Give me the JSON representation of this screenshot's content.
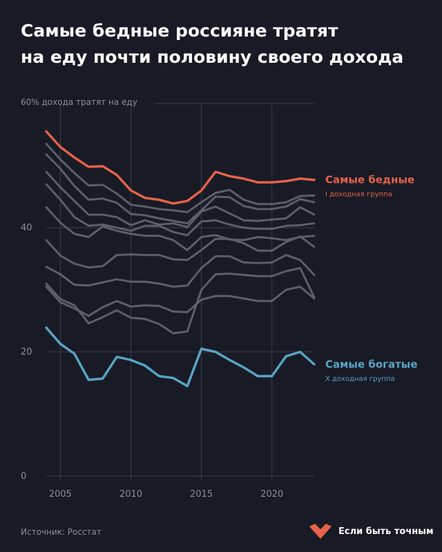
{
  "title": {
    "line1": "Самые бедные россияне тратят",
    "line2": "на еду почти половину своего дохода"
  },
  "footer": {
    "source": "Источник: Росстат",
    "brand": "Если быть точным",
    "brand_color": "#e5614a"
  },
  "chart_data": {
    "type": "line",
    "ylabel": "60% дохода тратят на еду",
    "ylim": [
      0,
      60
    ],
    "xlim": [
      2004,
      2023
    ],
    "yticks": [
      0,
      20,
      40
    ],
    "xticks": [
      2005,
      2010,
      2015,
      2020
    ],
    "grid": true,
    "x": [
      2004,
      2005,
      2006,
      2007,
      2008,
      2009,
      2010,
      2011,
      2012,
      2013,
      2014,
      2015,
      2016,
      2017,
      2018,
      2019,
      2020,
      2021,
      2022,
      2023
    ],
    "series": [
      {
        "id": "poorest",
        "name": "Самые бедные",
        "sublabel": "I доходная группа",
        "color": "#e5614a",
        "highlight": true,
        "values": [
          55.5,
          53.0,
          51.3,
          49.8,
          49.9,
          48.5,
          46.0,
          44.8,
          44.5,
          43.9,
          44.3,
          46.0,
          49.0,
          48.3,
          47.9,
          47.3,
          47.3,
          47.5,
          47.9,
          47.7
        ]
      },
      {
        "id": "g2",
        "name": "",
        "color": "#5a5f6b",
        "highlight": false,
        "values": [
          53.5,
          51.0,
          48.8,
          46.8,
          46.9,
          45.5,
          43.7,
          43.4,
          43.0,
          42.8,
          42.5,
          44.1,
          45.6,
          46.1,
          44.5,
          43.8,
          43.8,
          44.1,
          45.1,
          45.2
        ]
      },
      {
        "id": "g3",
        "name": "",
        "color": "#5a5f6b",
        "highlight": false,
        "values": [
          51.8,
          49.5,
          46.7,
          44.5,
          44.7,
          44.0,
          42.2,
          42.0,
          41.5,
          41.1,
          40.7,
          42.8,
          45.0,
          44.9,
          43.5,
          43.0,
          43.0,
          43.4,
          44.6,
          44.1
        ]
      },
      {
        "id": "g4",
        "name": "",
        "color": "#5a5f6b",
        "highlight": false,
        "values": [
          49.0,
          46.5,
          44.3,
          42.1,
          42.1,
          41.7,
          40.4,
          41.2,
          40.5,
          40.7,
          40.1,
          42.6,
          43.4,
          42.3,
          41.2,
          41.1,
          41.3,
          41.5,
          43.3,
          42.1
        ]
      },
      {
        "id": "g5",
        "name": "",
        "color": "#5a5f6b",
        "highlight": false,
        "values": [
          47.0,
          44.5,
          41.7,
          40.3,
          40.5,
          40.0,
          39.5,
          40.3,
          40.3,
          39.3,
          38.8,
          41.0,
          41.2,
          40.5,
          40.0,
          39.8,
          39.8,
          40.3,
          40.4,
          40.7
        ]
      },
      {
        "id": "g6",
        "name": "",
        "color": "#5a5f6b",
        "highlight": false,
        "values": [
          43.3,
          40.8,
          39.0,
          38.5,
          40.2,
          39.5,
          39.0,
          38.7,
          38.7,
          38.0,
          36.4,
          38.5,
          38.8,
          38.1,
          38.0,
          38.5,
          38.3,
          38.0,
          38.5,
          38.7
        ]
      },
      {
        "id": "g7",
        "name": "",
        "color": "#5a5f6b",
        "highlight": false,
        "values": [
          38.0,
          35.5,
          34.2,
          33.6,
          33.8,
          35.6,
          35.7,
          35.6,
          35.6,
          34.9,
          34.8,
          36.4,
          38.2,
          38.2,
          37.5,
          36.3,
          36.3,
          37.7,
          38.6,
          36.9
        ]
      },
      {
        "id": "g8",
        "name": "",
        "color": "#5a5f6b",
        "highlight": false,
        "values": [
          33.7,
          32.5,
          30.8,
          30.7,
          31.2,
          31.7,
          31.3,
          31.3,
          31.0,
          30.5,
          30.7,
          33.5,
          35.4,
          35.4,
          34.4,
          34.3,
          34.4,
          35.6,
          34.8,
          32.4
        ]
      },
      {
        "id": "g9",
        "name": "",
        "color": "#5a5f6b",
        "highlight": false,
        "values": [
          31.0,
          28.5,
          27.5,
          24.6,
          25.6,
          26.7,
          25.5,
          25.3,
          24.5,
          23.0,
          23.3,
          30.0,
          32.5,
          32.6,
          32.4,
          32.2,
          32.2,
          33.0,
          33.5,
          28.8
        ]
      },
      {
        "id": "g10",
        "name": "",
        "color": "#5a5f6b",
        "highlight": false,
        "values": [
          30.5,
          28.0,
          27.0,
          25.8,
          27.2,
          28.2,
          27.3,
          27.5,
          27.4,
          26.5,
          26.4,
          28.4,
          29.0,
          29.0,
          28.6,
          28.2,
          28.2,
          30.0,
          30.5,
          28.6
        ]
      },
      {
        "id": "richest",
        "name": "Самые богатые",
        "sublabel": "X доходная группа",
        "color": "#5aa3c4",
        "highlight": true,
        "values": [
          23.9,
          21.3,
          19.7,
          15.5,
          15.7,
          19.2,
          18.7,
          17.8,
          16.1,
          15.8,
          14.5,
          20.5,
          20.0,
          18.7,
          17.5,
          16.1,
          16.1,
          19.3,
          20.0,
          18.0
        ]
      }
    ]
  }
}
